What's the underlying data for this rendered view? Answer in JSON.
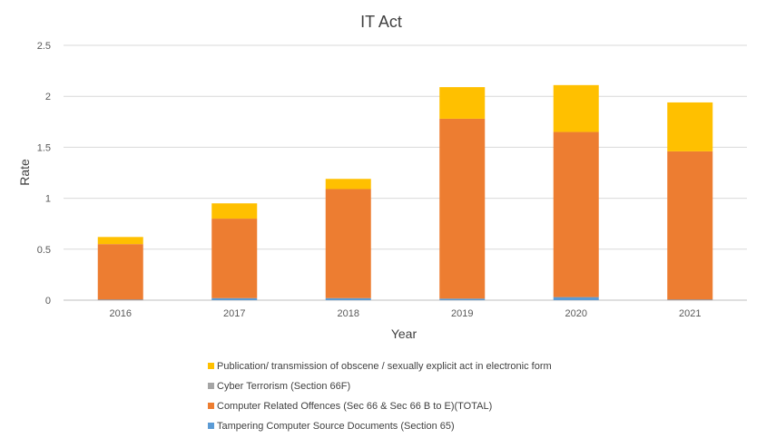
{
  "chart_data": {
    "type": "bar",
    "stacked": true,
    "title": "IT Act",
    "xlabel": "Year",
    "ylabel": "Rate",
    "ylim": [
      0,
      2.5
    ],
    "yticks": [
      "0",
      "0.5",
      "1",
      "1.5",
      "2",
      "2.5"
    ],
    "grid": true,
    "legend_position": "bottom",
    "categories": [
      "2016",
      "2017",
      "2018",
      "2019",
      "2020",
      "2021"
    ],
    "series": [
      {
        "name": "Tampering Computer Source Documents (Section 65)",
        "color": "#5B9BD5",
        "values": [
          0.005,
          0.02,
          0.02,
          0.015,
          0.03,
          0.005
        ]
      },
      {
        "name": "Computer Related Offences (Sec 66 & Sec 66 B to E)(TOTAL)",
        "color": "#ED7D31",
        "values": [
          0.545,
          0.78,
          1.07,
          1.765,
          1.62,
          1.455
        ]
      },
      {
        "name": "Cyber Terrorism (Section 66F)",
        "color": "#A5A5A5",
        "values": [
          0,
          0,
          0,
          0,
          0,
          0
        ]
      },
      {
        "name": "Publication/ transmission of obscene / sexually explicit act in electronic form",
        "color": "#FFC000",
        "values": [
          0.07,
          0.15,
          0.1,
          0.31,
          0.46,
          0.48
        ]
      }
    ],
    "legend_order": [
      3,
      2,
      1,
      0
    ]
  }
}
